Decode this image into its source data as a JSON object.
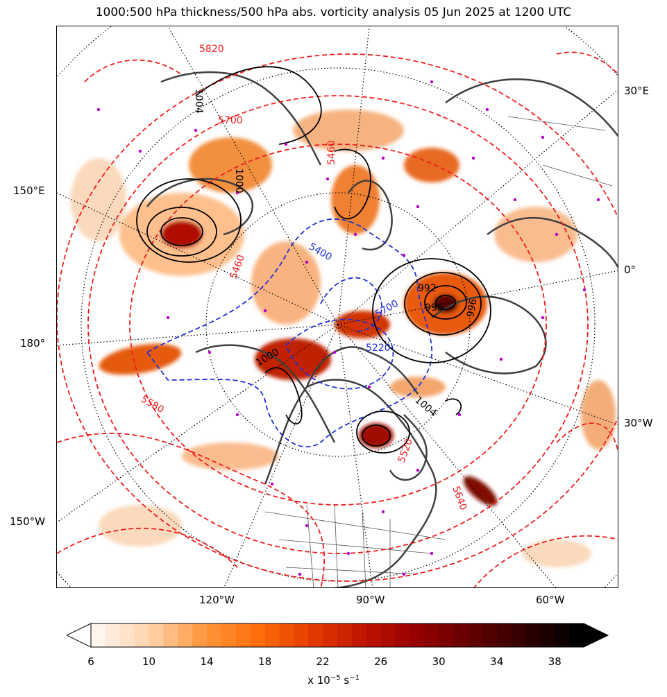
{
  "title": "1000:500 hPa thickness/500 hPa abs. vorticity analysis 05 Jun 2025 at 1200 UTC",
  "lat_lon_labels": {
    "right_30E": "30°E",
    "right_0": "0°",
    "right_30W": "30°W",
    "left_150E": "150°E",
    "left_180": "180°",
    "left_150W": "150°W",
    "bottom_120W": "120°W",
    "bottom_90W": "90°W",
    "bottom_60W": "60°W"
  },
  "thickness_labels": [
    "5820",
    "5700",
    "5460",
    "5580",
    "5640",
    "5520",
    "5220",
    "5460",
    "5400",
    "5700"
  ],
  "pressure_labels": [
    "992",
    "996",
    "1004",
    "1004",
    "1000",
    "996",
    "1000"
  ],
  "colorbar": {
    "ticks": [
      "6",
      "10",
      "14",
      "18",
      "22",
      "26",
      "30",
      "34",
      "38"
    ],
    "units_prefix": "x 10",
    "units_exp": "−5",
    "units_suffix": " s",
    "units_exp2": "−1",
    "min": 6,
    "max": 40,
    "step": 1
  },
  "colors": {
    "thickness_warm": "#ee1c1c",
    "thickness_cold": "#1f2fd6",
    "pressure": "#000000",
    "coast": "#3f3f3f",
    "station": "#b400c8"
  }
}
